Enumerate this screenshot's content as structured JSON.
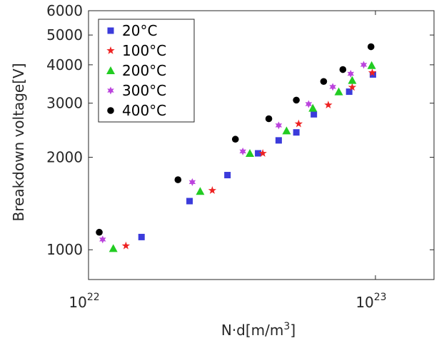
{
  "chart_data": {
    "type": "scatter",
    "title": "",
    "xlabel": "N·d[m/m",
    "xlabel_sup": "3",
    "xlabel_tail": "]",
    "ylabel": "Breakdown voltage[V]",
    "xscale": "log",
    "yscale": "log",
    "xlim": [
      1e+22,
      1.6e+23
    ],
    "ylim": [
      800,
      6000
    ],
    "grid": false,
    "legend_position": "top-left",
    "x_ticks": [
      {
        "value": 1e+22,
        "base": "10",
        "exp": "22"
      },
      {
        "value": 1e+23,
        "base": "10",
        "exp": "23"
      }
    ],
    "y_ticks": [
      {
        "value": 1000,
        "label": "1000"
      },
      {
        "value": 2000,
        "label": "2000"
      },
      {
        "value": 3000,
        "label": "3000"
      },
      {
        "value": 4000,
        "label": "4000"
      },
      {
        "value": 5000,
        "label": "5000"
      },
      {
        "value": 6000,
        "label": "6000"
      }
    ],
    "series": [
      {
        "name": "20°C",
        "marker": "square",
        "color": "#3b3bdb",
        "points": [
          [
            1.53e+22,
            1100
          ],
          [
            2.25e+22,
            1440
          ],
          [
            3.05e+22,
            1750
          ],
          [
            3.9e+22,
            2060
          ],
          [
            4.6e+22,
            2270
          ],
          [
            5.3e+22,
            2410
          ],
          [
            6.1e+22,
            2760
          ],
          [
            8.1e+22,
            3270
          ],
          [
            9.8e+22,
            3720
          ]
        ]
      },
      {
        "name": "100°C",
        "marker": "star",
        "color": "#ee2222",
        "points": [
          [
            1.35e+22,
            1030
          ],
          [
            2.7e+22,
            1560
          ],
          [
            4.05e+22,
            2060
          ],
          [
            5.4e+22,
            2570
          ],
          [
            6.85e+22,
            2960
          ],
          [
            8.3e+22,
            3380
          ],
          [
            9.75e+22,
            3770
          ]
        ]
      },
      {
        "name": "200°C",
        "marker": "triangle",
        "color": "#22cc22",
        "points": [
          [
            1.22e+22,
            1010
          ],
          [
            2.45e+22,
            1550
          ],
          [
            3.65e+22,
            2060
          ],
          [
            4.9e+22,
            2440
          ],
          [
            6.05e+22,
            2890
          ],
          [
            7.45e+22,
            3270
          ],
          [
            8.3e+22,
            3560
          ],
          [
            9.7e+22,
            3980
          ]
        ]
      },
      {
        "name": "300°C",
        "marker": "asterisk",
        "color": "#bb44dd",
        "points": [
          [
            1.12e+22,
            1080
          ],
          [
            2.3e+22,
            1660
          ],
          [
            3.45e+22,
            2090
          ],
          [
            4.6e+22,
            2540
          ],
          [
            5.85e+22,
            2980
          ],
          [
            7.1e+22,
            3390
          ],
          [
            8.2e+22,
            3740
          ],
          [
            9.1e+22,
            4000
          ]
        ]
      },
      {
        "name": "400°C",
        "marker": "circle",
        "color": "#000000",
        "points": [
          [
            1.09e+22,
            1140
          ],
          [
            2.05e+22,
            1690
          ],
          [
            3.25e+22,
            2290
          ],
          [
            4.25e+22,
            2670
          ],
          [
            5.3e+22,
            3070
          ],
          [
            6.6e+22,
            3530
          ],
          [
            7.7e+22,
            3860
          ],
          [
            9.65e+22,
            4580
          ]
        ]
      }
    ]
  }
}
